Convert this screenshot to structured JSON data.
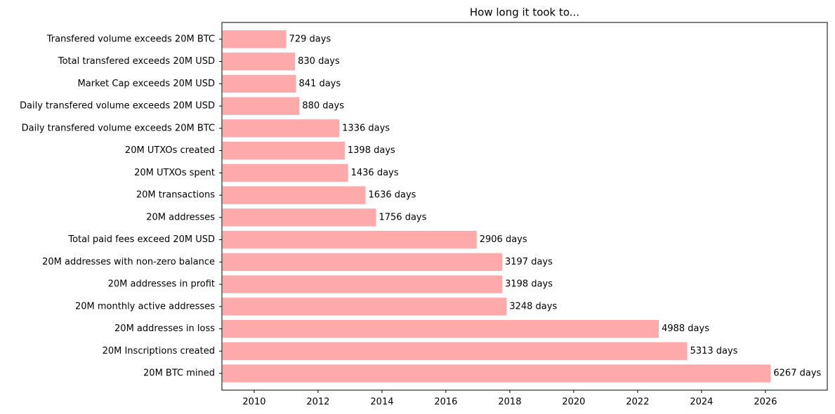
{
  "chart_data": {
    "type": "barh",
    "title": "How long it took to...",
    "categories": [
      "Transfered volume exceeds 20M BTC",
      "Total transfered exceeds 20M USD",
      "Market Cap exceeds 20M USD",
      "Daily transfered volume exceeds 20M USD",
      "Daily transfered volume exceeds 20M BTC",
      "20M UTXOs created",
      "20M UTXOs spent",
      "20M transactions",
      "20M addresses",
      "Total paid fees exceed 20M USD",
      "20M addresses with non-zero balance",
      "20M addresses in profit",
      "20M monthly active addresses",
      "20M addresses in loss",
      "20M Inscriptions created",
      "20M BTC mined"
    ],
    "values": [
      729,
      830,
      841,
      880,
      1336,
      1398,
      1436,
      1636,
      1756,
      2906,
      3197,
      3198,
      3248,
      4988,
      5313,
      6267
    ],
    "value_labels": [
      "729 days",
      "830 days",
      "841 days",
      "880 days",
      "1336 days",
      "1398 days",
      "1436 days",
      "1636 days",
      "1756 days",
      "2906 days",
      "3197 days",
      "3198 days",
      "3248 days",
      "4988 days",
      "5313 days",
      "6267 days"
    ],
    "color": "#ffaaaa",
    "xlim": [
      -6,
      6914
    ],
    "xticks": [
      {
        "value": 363,
        "label": "2010"
      },
      {
        "value": 1093,
        "label": "2012"
      },
      {
        "value": 1824,
        "label": "2014"
      },
      {
        "value": 2554,
        "label": "2016"
      },
      {
        "value": 3285,
        "label": "2018"
      },
      {
        "value": 4015,
        "label": "2020"
      },
      {
        "value": 4746,
        "label": "2022"
      },
      {
        "value": 5476,
        "label": "2024"
      },
      {
        "value": 6207,
        "label": "2026"
      }
    ],
    "grid": false
  }
}
